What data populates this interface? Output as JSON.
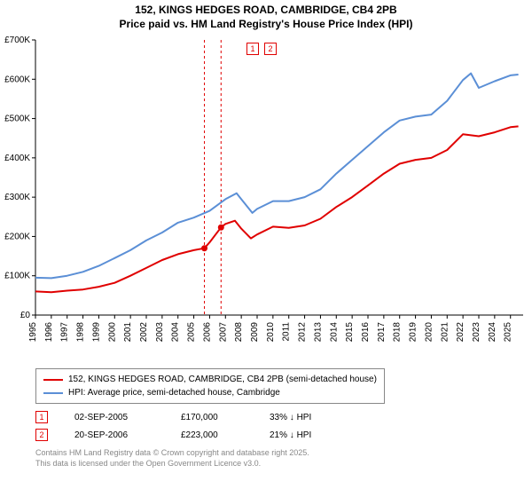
{
  "title_line1": "152, KINGS HEDGES ROAD, CAMBRIDGE, CB4 2PB",
  "title_line2": "Price paid vs. HM Land Registry's House Price Index (HPI)",
  "chart": {
    "type": "line",
    "background_color": "#ffffff",
    "grid": false,
    "axis_color": "#000000",
    "xlim": [
      1995,
      2025.8
    ],
    "ylim": [
      0,
      700000
    ],
    "xticks": [
      1995,
      1996,
      1997,
      1998,
      1999,
      2000,
      2001,
      2002,
      2003,
      2004,
      2005,
      2006,
      2007,
      2008,
      2009,
      2010,
      2011,
      2012,
      2013,
      2014,
      2015,
      2016,
      2017,
      2018,
      2019,
      2020,
      2021,
      2022,
      2023,
      2024,
      2025
    ],
    "yticks": [
      0,
      100000,
      200000,
      300000,
      400000,
      500000,
      600000,
      700000
    ],
    "ytick_labels": [
      "£0",
      "£100K",
      "£200K",
      "£300K",
      "£400K",
      "£500K",
      "£600K",
      "£700K"
    ],
    "tick_fontsize": 10,
    "line_width": 2,
    "series": [
      {
        "name": "property",
        "color": "#e00000",
        "label": "152, KINGS HEDGES ROAD, CAMBRIDGE, CB4 2PB (semi-detached house)",
        "points": [
          [
            1995,
            60000
          ],
          [
            1996,
            58000
          ],
          [
            1997,
            62000
          ],
          [
            1998,
            65000
          ],
          [
            1999,
            72000
          ],
          [
            2000,
            82000
          ],
          [
            2001,
            100000
          ],
          [
            2002,
            120000
          ],
          [
            2003,
            140000
          ],
          [
            2004,
            155000
          ],
          [
            2005,
            165000
          ],
          [
            2005.67,
            170000
          ],
          [
            2006,
            185000
          ],
          [
            2006.72,
            223000
          ],
          [
            2007,
            232000
          ],
          [
            2007.6,
            240000
          ],
          [
            2008,
            220000
          ],
          [
            2008.6,
            195000
          ],
          [
            2009,
            205000
          ],
          [
            2010,
            225000
          ],
          [
            2011,
            222000
          ],
          [
            2012,
            228000
          ],
          [
            2013,
            245000
          ],
          [
            2014,
            275000
          ],
          [
            2015,
            300000
          ],
          [
            2016,
            330000
          ],
          [
            2017,
            360000
          ],
          [
            2018,
            385000
          ],
          [
            2019,
            395000
          ],
          [
            2020,
            400000
          ],
          [
            2021,
            420000
          ],
          [
            2022,
            460000
          ],
          [
            2023,
            455000
          ],
          [
            2024,
            465000
          ],
          [
            2025,
            478000
          ],
          [
            2025.5,
            480000
          ]
        ]
      },
      {
        "name": "hpi",
        "color": "#5b8fd6",
        "label": "HPI: Average price, semi-detached house, Cambridge",
        "points": [
          [
            1995,
            95000
          ],
          [
            1996,
            94000
          ],
          [
            1997,
            100000
          ],
          [
            1998,
            110000
          ],
          [
            1999,
            125000
          ],
          [
            2000,
            145000
          ],
          [
            2001,
            165000
          ],
          [
            2002,
            190000
          ],
          [
            2003,
            210000
          ],
          [
            2004,
            235000
          ],
          [
            2005,
            248000
          ],
          [
            2006,
            265000
          ],
          [
            2007,
            295000
          ],
          [
            2007.7,
            310000
          ],
          [
            2008,
            295000
          ],
          [
            2008.7,
            260000
          ],
          [
            2009,
            270000
          ],
          [
            2010,
            290000
          ],
          [
            2011,
            290000
          ],
          [
            2012,
            300000
          ],
          [
            2013,
            320000
          ],
          [
            2014,
            360000
          ],
          [
            2015,
            395000
          ],
          [
            2016,
            430000
          ],
          [
            2017,
            465000
          ],
          [
            2018,
            495000
          ],
          [
            2019,
            505000
          ],
          [
            2020,
            510000
          ],
          [
            2021,
            545000
          ],
          [
            2022,
            598000
          ],
          [
            2022.5,
            615000
          ],
          [
            2023,
            578000
          ],
          [
            2024,
            595000
          ],
          [
            2025,
            610000
          ],
          [
            2025.5,
            612000
          ]
        ]
      }
    ],
    "sale_markers": [
      {
        "x": 2005.67,
        "y": 170000
      },
      {
        "x": 2006.72,
        "y": 223000
      }
    ],
    "marker_color": "#e00000",
    "marker_radius": 3.5,
    "vline_dash": "3,3"
  },
  "top_marker_labels": [
    "1",
    "2"
  ],
  "marker_rows": [
    {
      "num": "1",
      "date": "02-SEP-2005",
      "price": "£170,000",
      "pct": "33% ↓ HPI"
    },
    {
      "num": "2",
      "date": "20-SEP-2006",
      "price": "£223,000",
      "pct": "21% ↓ HPI"
    }
  ],
  "footnote_line1": "Contains HM Land Registry data © Crown copyright and database right 2025.",
  "footnote_line2": "This data is licensed under the Open Government Licence v3.0."
}
